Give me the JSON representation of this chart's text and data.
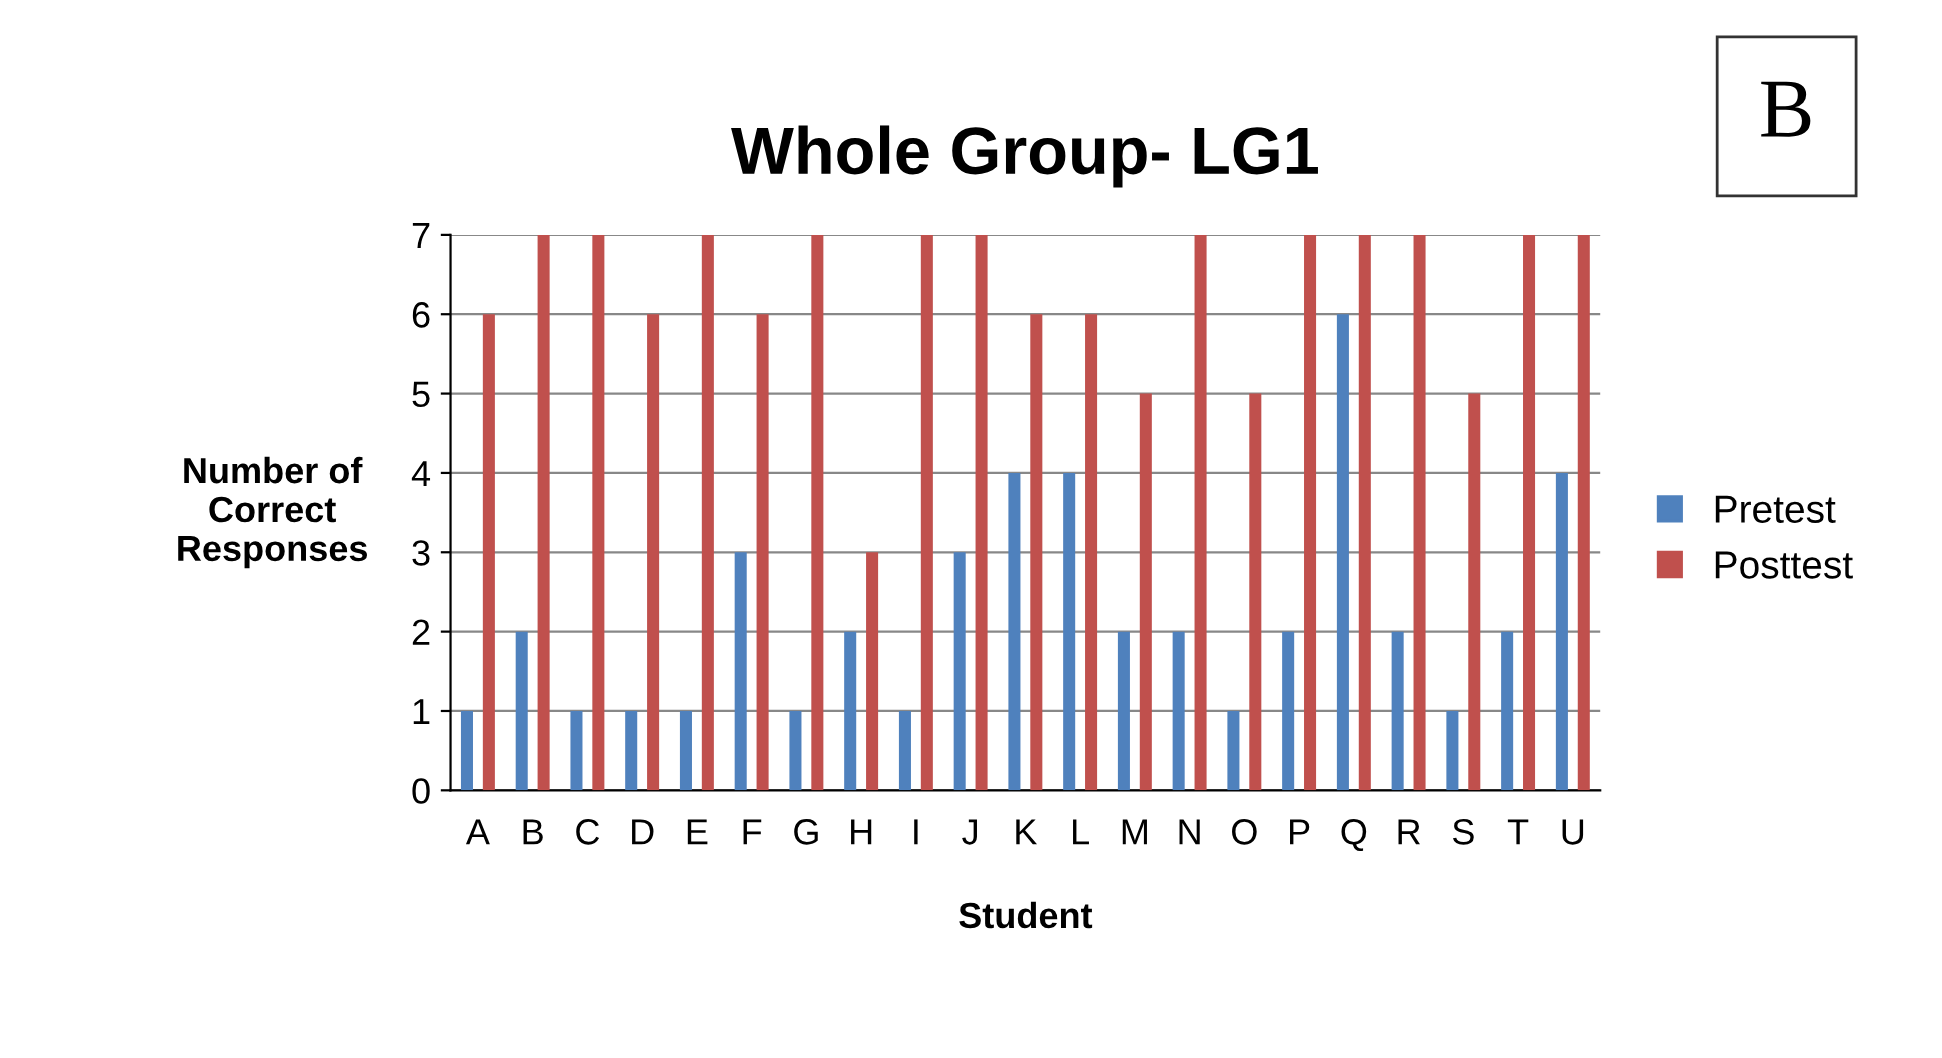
{
  "chart_data": {
    "type": "bar",
    "title": "Whole Group- LG1",
    "xlabel": "Student",
    "ylabel": "Number of\nCorrect\nResponses",
    "annotations": [
      "B"
    ],
    "categories": [
      "A",
      "B",
      "C",
      "D",
      "E",
      "F",
      "G",
      "H",
      "I",
      "J",
      "K",
      "L",
      "M",
      "N",
      "O",
      "P",
      "Q",
      "R",
      "S",
      "T",
      "U"
    ],
    "series": [
      {
        "name": "Pretest",
        "color": "#4f81bd",
        "values": [
          1,
          2,
          1,
          1,
          1,
          3,
          1,
          2,
          1,
          3,
          4,
          4,
          2,
          2,
          1,
          2,
          6,
          2,
          1,
          2,
          4
        ]
      },
      {
        "name": "Posttest",
        "color": "#c0504d",
        "values": [
          6,
          7,
          7,
          6,
          7,
          6,
          7,
          3,
          7,
          7,
          6,
          6,
          5,
          7,
          5,
          7,
          7,
          7,
          5,
          7,
          7
        ]
      }
    ],
    "ylim": [
      0,
      7
    ],
    "yticks": [
      0,
      1,
      2,
      3,
      4,
      5,
      6,
      7
    ],
    "grid": "y",
    "legend": "right"
  }
}
